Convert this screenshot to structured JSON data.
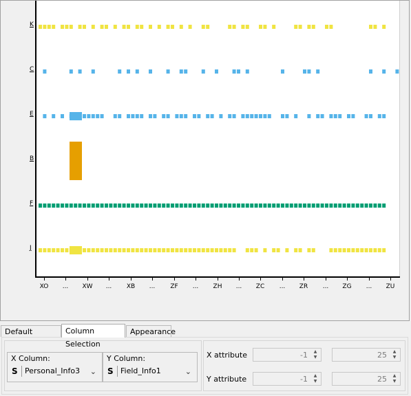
{
  "chart_data": {
    "type": "scatter",
    "title": "",
    "xlabel": "",
    "ylabel": "",
    "y_categories": [
      "K",
      "C",
      "E",
      "B",
      "F",
      "J"
    ],
    "x_tick_labels": [
      "XO",
      "...",
      "XW",
      "...",
      "XB",
      "...",
      "ZF",
      "...",
      "ZH",
      "...",
      "ZC",
      "...",
      "ZR",
      "...",
      "ZG",
      "...",
      "ZU"
    ],
    "series": [
      {
        "category": "K",
        "color": "#f0e442",
        "x_positions": [
          0,
          1,
          2,
          3,
          5,
          6,
          7,
          9,
          10,
          12,
          14,
          15,
          17,
          19,
          20,
          22,
          23,
          25,
          27,
          29,
          30,
          32,
          34,
          37,
          38,
          43,
          44,
          46,
          47,
          50,
          51,
          53,
          58,
          59,
          61,
          62,
          65,
          66,
          75,
          76,
          78
        ]
      },
      {
        "category": "C",
        "color": "#56b4e9",
        "x_positions": [
          1,
          7,
          9,
          12,
          18,
          20,
          22,
          25,
          29,
          32,
          33,
          37,
          40,
          44,
          45,
          47,
          55,
          60,
          61,
          63,
          75,
          78,
          81
        ]
      },
      {
        "category": "E",
        "color": "#56b4e9",
        "x_positions": [
          1,
          3,
          5,
          7,
          8,
          9,
          10,
          11,
          12,
          13,
          14,
          17,
          18,
          20,
          21,
          22,
          23,
          25,
          26,
          28,
          29,
          31,
          32,
          33,
          35,
          36,
          38,
          39,
          41,
          43,
          44,
          46,
          47,
          48,
          49,
          50,
          51,
          52,
          55,
          56,
          58,
          61,
          63,
          64,
          66,
          67,
          68,
          70,
          71,
          74,
          75,
          77,
          78
        ]
      },
      {
        "category": "F",
        "color": "#009e73",
        "x_positions": [
          0,
          1,
          2,
          3,
          4,
          5,
          6,
          7,
          8,
          9,
          10,
          11,
          12,
          13,
          14,
          15,
          16,
          17,
          18,
          19,
          20,
          21,
          22,
          23,
          24,
          25,
          26,
          27,
          28,
          29,
          30,
          31,
          32,
          33,
          34,
          35,
          36,
          37,
          38,
          39,
          40,
          41,
          42,
          43,
          44,
          45,
          46,
          47,
          48,
          49,
          50,
          51,
          52,
          53,
          54,
          55,
          56,
          57,
          58,
          59,
          60,
          61,
          62,
          63,
          64,
          65,
          66,
          67,
          68,
          69,
          70,
          71,
          72,
          73,
          74,
          75,
          76,
          77,
          78
        ]
      },
      {
        "category": "J",
        "color": "#f0e442",
        "x_positions": [
          0,
          1,
          2,
          3,
          4,
          5,
          6,
          7,
          8,
          9,
          10,
          11,
          12,
          13,
          14,
          15,
          16,
          17,
          18,
          19,
          20,
          21,
          22,
          23,
          24,
          25,
          26,
          27,
          28,
          29,
          30,
          31,
          32,
          33,
          34,
          35,
          36,
          37,
          38,
          39,
          40,
          41,
          42,
          43,
          44,
          47,
          48,
          49,
          51,
          53,
          54,
          56,
          58,
          59,
          61,
          62,
          66,
          67,
          68,
          69,
          70,
          71,
          72,
          73,
          74,
          75,
          76,
          77,
          78
        ]
      }
    ],
    "highlights": [
      {
        "category": "B",
        "color": "#e69f00",
        "note": "tall bar"
      },
      {
        "category": "E",
        "color": "#56b4e9"
      },
      {
        "category": "J",
        "color": "#f0e442"
      }
    ],
    "grid": false,
    "legend": "none"
  },
  "tabs": [
    {
      "label": "Default Settings",
      "active": false
    },
    {
      "label": "Column Selection",
      "active": true
    },
    {
      "label": "Appearance",
      "active": false
    }
  ],
  "x_column": {
    "label": "X Column:",
    "type_badge": "S",
    "value": "Personal_Info3"
  },
  "y_column": {
    "label": "Y Column:",
    "type_badge": "S",
    "value": "Field_Info1"
  },
  "x_attribute": {
    "label": "X attribute",
    "min": "-1",
    "max": "25"
  },
  "y_attribute": {
    "label": "Y attribute",
    "min": "-1",
    "max": "25"
  },
  "icons": {
    "chevron": "chevron-down-icon",
    "spin_up": "spin-up-icon",
    "spin_down": "spin-down-icon"
  }
}
